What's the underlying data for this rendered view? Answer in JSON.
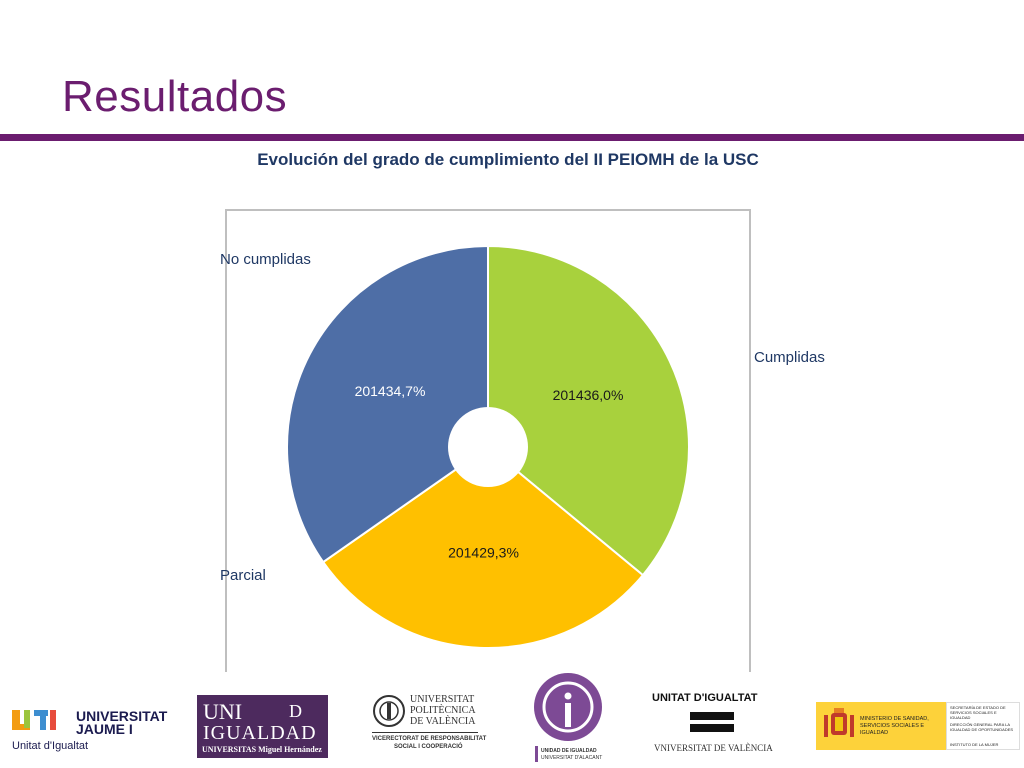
{
  "slide": {
    "title": "Resultados"
  },
  "chart_data": {
    "type": "pie",
    "title": "Evolución del grado de cumplimiento del II PEIOMH de la USC",
    "categories": [
      "Cumplidas",
      "Parcial",
      "No cumplidas"
    ],
    "values": [
      36.0,
      29.3,
      34.7
    ],
    "data_labels": [
      "201436,0%",
      "201429,3%",
      "201434,7%"
    ],
    "colors": [
      "#a8d13d",
      "#ffc000",
      "#4e6ea6"
    ],
    "legend": "category labels placed outside slices"
  },
  "logos": {
    "uji": {
      "name_line1": "UNIVERSITAT",
      "name_line2": "JAUME I",
      "subtitle": "Unitat d'Igualtat"
    },
    "umh": {
      "line1": "UNI",
      "line1b": "D",
      "line2": "IGUALDAD",
      "line3": "UNIVERSITAS Miguel Hernández"
    },
    "upv": {
      "line1": "UNIVERSITAT",
      "line2": "POLITÈCNICA",
      "line3": "DE VALÈNCIA",
      "line4": "VICERECTORAT DE RESPONSABILITAT",
      "line5": "SOCIAL I COOPERACIÓ"
    },
    "ua": {
      "line1": "UNIDAD DE IGUALDAD",
      "line2": "UNIVERSITAT D'ALACANT"
    },
    "uv": {
      "line1": "UNITAT D'IGUALTAT",
      "line2": "VNIVERSITAT DE VALÈNCIA"
    },
    "ministerio": {
      "ministry": "MINISTERIO DE SANIDAD, SERVICIOS SOCIALES E IGUALDAD",
      "right1": "SECRETARÍA DE ESTADO DE SERVICIOS SOCIALES E IGUALDAD",
      "right2": "DIRECCIÓN GENERAL PARA LA IGUALDAD DE OPORTUNIDADES",
      "right3": "INSTITUTO DE LA MUJER"
    }
  }
}
